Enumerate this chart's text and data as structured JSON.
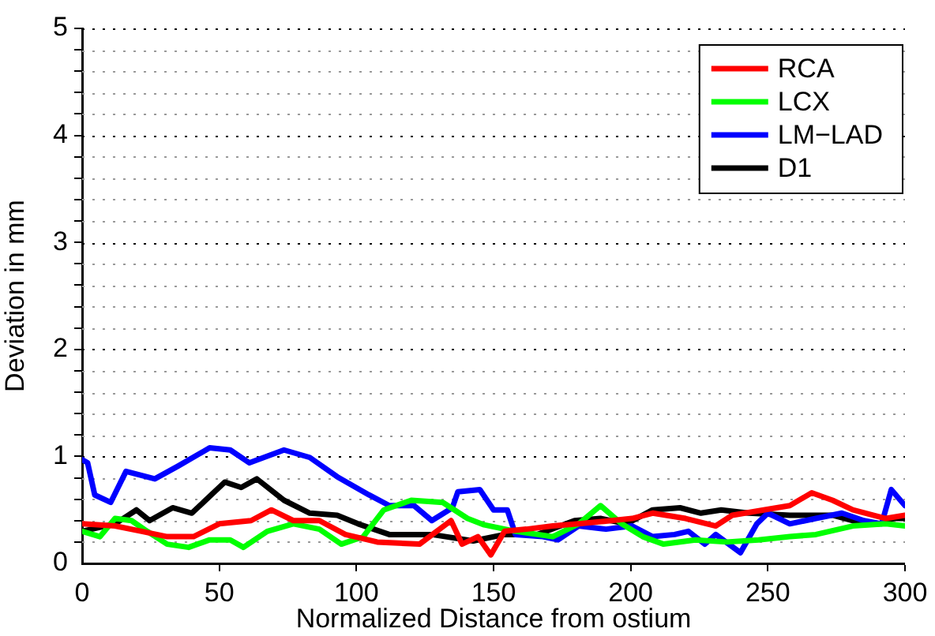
{
  "chart_data": {
    "type": "line",
    "xlabel": "Normalized Distance from ostium",
    "ylabel": "Deviation in mm",
    "xlim": [
      0,
      300
    ],
    "xticks": [
      0,
      50,
      100,
      150,
      200,
      250,
      300
    ],
    "ylim": [
      0,
      5
    ],
    "yticks": [
      0,
      {
        "value": 0.2,
        "label": null
      },
      {
        "value": 0.4,
        "label": null
      },
      {
        "value": 0.6,
        "label": null
      },
      {
        "value": 0.8,
        "label": null
      },
      1,
      {
        "value": 1.2,
        "label": null
      },
      {
        "value": 1.4,
        "label": null
      },
      {
        "value": 1.6,
        "label": null
      },
      {
        "value": 1.8,
        "label": null
      },
      2,
      {
        "value": 2.2,
        "label": null
      },
      {
        "value": 2.4,
        "label": null
      },
      {
        "value": 2.6,
        "label": null
      },
      {
        "value": 2.8,
        "label": null
      },
      3,
      {
        "value": 3.2,
        "label": null
      },
      {
        "value": 3.4,
        "label": null
      },
      {
        "value": 3.6,
        "label": null
      },
      {
        "value": 3.8,
        "label": null
      },
      4,
      {
        "value": 4.2,
        "label": null
      },
      {
        "value": 4.4,
        "label": null
      },
      {
        "value": 4.6,
        "label": null
      },
      {
        "value": 4.8,
        "label": null
      },
      5
    ],
    "grid": "y",
    "legend": "top right",
    "marker": "none",
    "line_style": "solid",
    "series": [
      {
        "name": "RCA",
        "color": "#ff0000",
        "x": [
          0,
          12,
          21.7,
          31,
          40.6,
          50,
          61.6,
          69,
          77,
          86.5,
          96,
          107.6,
          123,
          134.5,
          138.5,
          144.3,
          149,
          154,
          162,
          171.6,
          181,
          193,
          200.5,
          208,
          220,
          231,
          237,
          248.5,
          258,
          266,
          273.6,
          281,
          293,
          300
        ],
        "values": [
          0.37,
          0.35,
          0.3,
          0.25,
          0.25,
          0.37,
          0.4,
          0.5,
          0.4,
          0.4,
          0.27,
          0.2,
          0.18,
          0.4,
          0.18,
          0.25,
          0.08,
          0.3,
          0.32,
          0.35,
          0.37,
          0.4,
          0.42,
          0.47,
          0.42,
          0.35,
          0.45,
          0.5,
          0.54,
          0.66,
          0.59,
          0.5,
          0.42,
          0.45
        ]
      },
      {
        "name": "LCX",
        "color": "#00ff00",
        "x": [
          0,
          6.5,
          12,
          18,
          23.7,
          31,
          38.8,
          46.5,
          54,
          58.8,
          67.5,
          77,
          86.5,
          94.5,
          102.5,
          110,
          120,
          131.5,
          140.5,
          146.6,
          158,
          171.6,
          181,
          189,
          196.7,
          204.4,
          212,
          223.6,
          235,
          246.6,
          258,
          267.5,
          281,
          293,
          300
        ],
        "values": [
          0.3,
          0.25,
          0.42,
          0.4,
          0.3,
          0.18,
          0.15,
          0.22,
          0.22,
          0.15,
          0.3,
          0.37,
          0.32,
          0.18,
          0.25,
          0.5,
          0.59,
          0.57,
          0.42,
          0.36,
          0.3,
          0.25,
          0.37,
          0.54,
          0.37,
          0.25,
          0.18,
          0.22,
          0.2,
          0.22,
          0.25,
          0.27,
          0.35,
          0.37,
          0.35
        ]
      },
      {
        "name": "LM−LAD",
        "color": "#0000ff",
        "x": [
          0,
          2,
          4.6,
          10.4,
          16,
          26.5,
          35,
          46.5,
          54,
          61,
          73.6,
          83,
          93,
          104.6,
          112,
          121,
          127.5,
          135,
          137,
          145,
          150,
          155,
          158,
          168,
          173.5,
          181,
          191,
          200.5,
          208,
          216,
          221,
          227,
          231,
          240,
          246,
          250,
          258,
          267.5,
          277,
          285,
          291.5,
          295,
          300
        ],
        "values": [
          0.97,
          0.94,
          0.64,
          0.57,
          0.86,
          0.79,
          0.91,
          1.08,
          1.06,
          0.94,
          1.06,
          0.99,
          0.81,
          0.64,
          0.54,
          0.54,
          0.4,
          0.52,
          0.67,
          0.69,
          0.5,
          0.5,
          0.27,
          0.25,
          0.22,
          0.35,
          0.32,
          0.35,
          0.25,
          0.27,
          0.3,
          0.18,
          0.27,
          0.1,
          0.37,
          0.47,
          0.37,
          0.42,
          0.47,
          0.4,
          0.37,
          0.69,
          0.54
        ]
      },
      {
        "name": "D1",
        "color": "#000000",
        "x": [
          0,
          12,
          19.8,
          24.6,
          33,
          40,
          52,
          58,
          63.7,
          73.6,
          83,
          93,
          100.6,
          112,
          127.5,
          142.6,
          154,
          166,
          179.5,
          189,
          198.5,
          208,
          218,
          225.6,
          233,
          243,
          258,
          273.6,
          281,
          290.6,
          296,
          300
        ],
        "values": [
          0.3,
          0.37,
          0.5,
          0.4,
          0.52,
          0.47,
          0.76,
          0.71,
          0.79,
          0.59,
          0.47,
          0.45,
          0.37,
          0.27,
          0.27,
          0.21,
          0.27,
          0.27,
          0.4,
          0.42,
          0.37,
          0.5,
          0.52,
          0.47,
          0.5,
          0.47,
          0.45,
          0.45,
          0.4,
          0.37,
          0.42,
          0.42
        ]
      }
    ]
  }
}
